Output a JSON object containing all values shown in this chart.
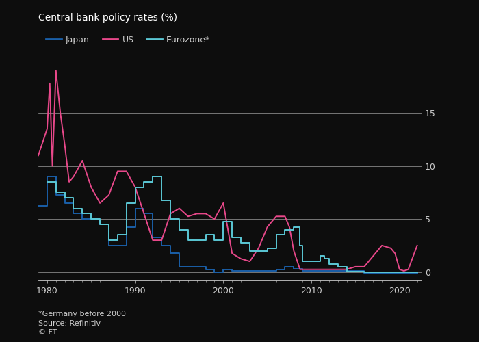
{
  "title": "Central bank policy rates (%)",
  "footnote1": "*Germany before 2000",
  "footnote2": "Source: Refinitiv",
  "footnote3": "© FT",
  "legend": [
    "Japan",
    "US",
    "Eurozone*"
  ],
  "colors": {
    "japan": "#1a5fa8",
    "us": "#e8488a",
    "eurozone": "#5bc8d5"
  },
  "background": "#0d0d0d",
  "plot_bg": "#0d0d0d",
  "grid_color": "#ffffff",
  "text_color": "#cccccc",
  "title_color": "#ffffff",
  "ylim": [
    -0.8,
    20.5
  ],
  "yticks": [
    0,
    5,
    10,
    15
  ],
  "xlim": [
    1979.0,
    2022.5
  ],
  "xticks": [
    1980,
    1990,
    2000,
    2010,
    2020
  ],
  "japan": {
    "years": [
      1979,
      1980,
      1981,
      1982,
      1983,
      1984,
      1985,
      1986,
      1987,
      1988,
      1989,
      1990,
      1991,
      1992,
      1993,
      1994,
      1995,
      1996,
      1997,
      1998,
      1999,
      2000,
      2001,
      2002,
      2003,
      2004,
      2005,
      2006,
      2007,
      2008,
      2009,
      2010,
      2011,
      2012,
      2013,
      2014,
      2015,
      2016,
      2017,
      2018,
      2019,
      2020,
      2021,
      2022
    ],
    "rates": [
      6.25,
      9.0,
      7.25,
      6.5,
      5.5,
      5.0,
      5.0,
      4.5,
      2.5,
      2.5,
      4.25,
      6.0,
      5.5,
      3.25,
      2.5,
      1.75,
      0.5,
      0.5,
      0.5,
      0.25,
      0.0,
      0.25,
      0.1,
      0.1,
      0.1,
      0.1,
      0.1,
      0.25,
      0.5,
      0.3,
      0.1,
      0.1,
      0.1,
      0.1,
      0.1,
      0.1,
      0.1,
      -0.1,
      -0.1,
      -0.1,
      -0.1,
      -0.1,
      -0.1,
      -0.1
    ]
  },
  "us": {
    "years": [
      1979,
      1980,
      1980.3,
      1980.6,
      1981,
      1981.5,
      1982,
      1982.5,
      1983,
      1984,
      1985,
      1986,
      1987,
      1988,
      1989,
      1990,
      1991,
      1992,
      1993,
      1994,
      1995,
      1996,
      1997,
      1998,
      1999,
      2000,
      2001,
      2002,
      2003,
      2004,
      2005,
      2006,
      2007,
      2007.5,
      2008,
      2008.7,
      2009,
      2010,
      2011,
      2012,
      2013,
      2014,
      2015,
      2016,
      2017,
      2018,
      2019,
      2019.5,
      2020,
      2020.5,
      2021,
      2022
    ],
    "rates": [
      11.0,
      13.5,
      17.8,
      10.0,
      19.0,
      15.0,
      12.0,
      8.5,
      9.0,
      10.5,
      8.0,
      6.5,
      7.25,
      9.5,
      9.5,
      8.0,
      5.5,
      3.0,
      3.0,
      5.5,
      6.0,
      5.25,
      5.5,
      5.5,
      5.0,
      6.5,
      1.75,
      1.25,
      1.0,
      2.25,
      4.25,
      5.25,
      5.25,
      4.25,
      2.0,
      0.25,
      0.25,
      0.25,
      0.25,
      0.25,
      0.25,
      0.25,
      0.5,
      0.5,
      1.5,
      2.5,
      2.25,
      1.75,
      0.25,
      0.1,
      0.25,
      2.5
    ]
  },
  "eurozone": {
    "years": [
      1980,
      1981,
      1982,
      1983,
      1984,
      1985,
      1986,
      1987,
      1988,
      1989,
      1990,
      1991,
      1992,
      1993,
      1994,
      1995,
      1996,
      1997,
      1998,
      1999,
      2000,
      2001,
      2002,
      2003,
      2004,
      2005,
      2006,
      2007,
      2008,
      2008.7,
      2009,
      2010,
      2011,
      2011.5,
      2012,
      2013,
      2014,
      2015,
      2016,
      2017,
      2018,
      2019,
      2020,
      2021,
      2022
    ],
    "rates": [
      8.5,
      7.5,
      7.0,
      6.0,
      5.5,
      5.0,
      4.5,
      3.0,
      3.5,
      6.5,
      8.0,
      8.5,
      9.0,
      6.75,
      5.0,
      4.0,
      3.0,
      3.0,
      3.5,
      3.0,
      4.75,
      3.25,
      2.75,
      2.0,
      2.0,
      2.25,
      3.5,
      4.0,
      4.25,
      2.5,
      1.0,
      1.0,
      1.5,
      1.25,
      0.75,
      0.5,
      0.05,
      0.05,
      0.0,
      0.0,
      0.0,
      0.0,
      0.0,
      0.0,
      0.0
    ]
  }
}
